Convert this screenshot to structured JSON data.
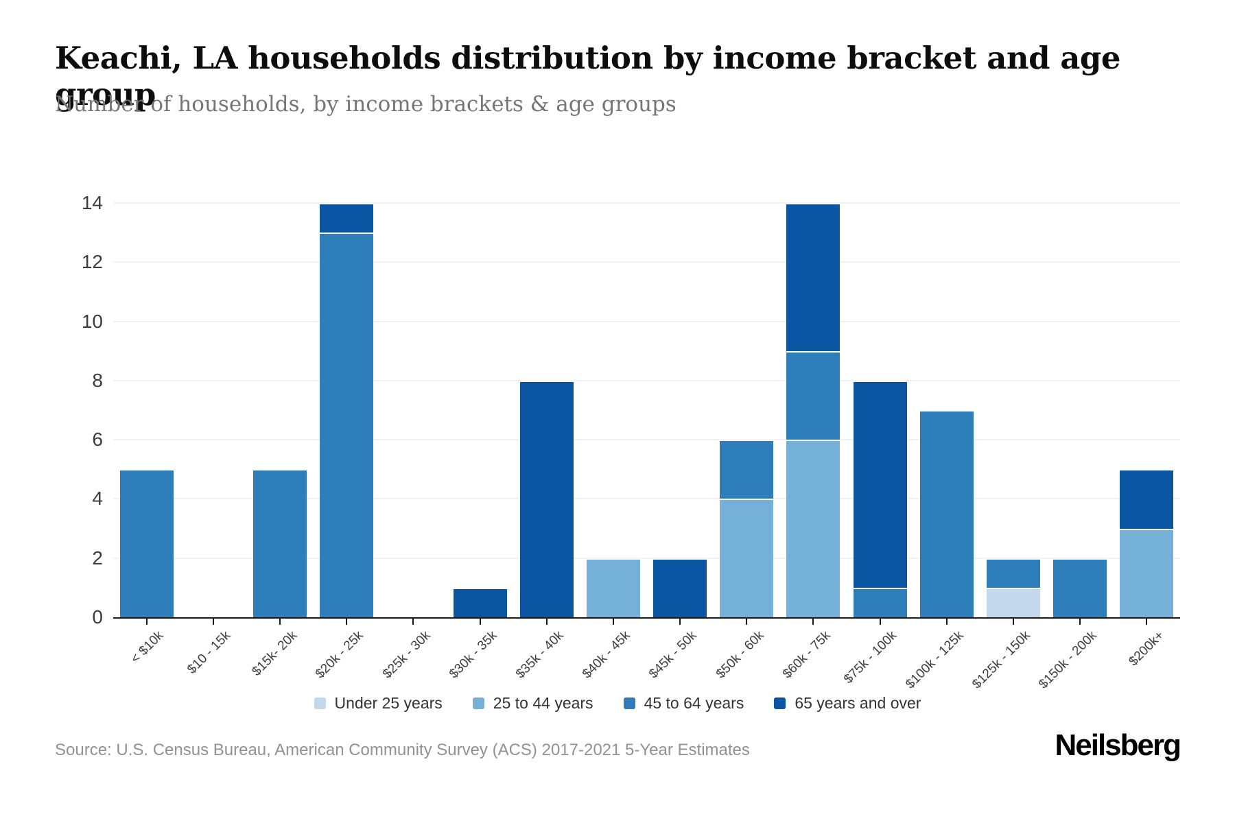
{
  "header": {
    "title": "Keachi, LA households distribution by income bracket and age group",
    "subtitle": "Number of households, by income brackets & age groups"
  },
  "footer": {
    "source": "Source: U.S. Census Bureau, American Community Survey (ACS) 2017-2021 5-Year Estimates",
    "brand": "Neilsberg"
  },
  "chart_data": {
    "type": "bar",
    "stacked": true,
    "title": "Keachi, LA households distribution by income bracket and age group",
    "subtitle": "Number of households, by income brackets & age groups",
    "xlabel": "",
    "ylabel": "",
    "ylim": [
      0,
      14
    ],
    "ytick_interval": 2,
    "yticks": [
      0,
      2,
      4,
      6,
      8,
      10,
      12,
      14
    ],
    "grid": "horizontal",
    "gridline_color": "#f2f2f2",
    "axis_color": "#1a1a1a",
    "legend_position": "bottom-center",
    "categories": [
      "< $10k",
      "$10 - 15k",
      "$15k- 20k",
      "$20k - 25k",
      "$25k - 30k",
      "$30k - 35k",
      "$35k - 40k",
      "$40k - 45k",
      "$45k - 50k",
      "$50k - 60k",
      "$60k - 75k",
      "$75k - 100k",
      "$100k - 125k",
      "$125k - 150k",
      "$150k - 200k",
      "$200k+"
    ],
    "series": [
      {
        "name": "Under 25 years",
        "color": "#c3d9eb",
        "values": [
          0,
          0,
          0,
          0,
          0,
          0,
          0,
          0,
          0,
          0,
          0,
          0,
          0,
          1,
          0,
          0
        ]
      },
      {
        "name": "25 to 44 years",
        "color": "#74b0d8",
        "values": [
          0,
          0,
          0,
          0,
          0,
          0,
          0,
          2,
          0,
          4,
          6,
          0,
          0,
          0,
          0,
          3
        ]
      },
      {
        "name": "45 to 64 years",
        "color": "#2f7ebc",
        "values": [
          5,
          0,
          5,
          13,
          0,
          0,
          0,
          0,
          0,
          2,
          3,
          1,
          7,
          1,
          2,
          0
        ]
      },
      {
        "name": "65 years and over",
        "color": "#0b56a2",
        "values": [
          0,
          0,
          0,
          1,
          0,
          1,
          8,
          0,
          2,
          0,
          5,
          7,
          0,
          0,
          0,
          2
        ]
      }
    ],
    "totals": [
      5,
      0,
      5,
      14,
      0,
      1,
      8,
      2,
      2,
      6,
      14,
      8,
      7,
      2,
      2,
      5
    ]
  }
}
